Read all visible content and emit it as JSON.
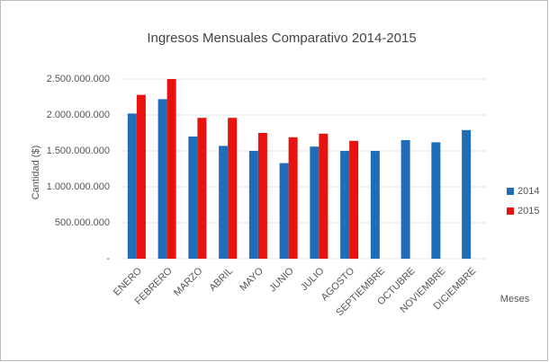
{
  "chart_data": {
    "type": "bar",
    "title": "Ingresos Mensuales Comparativo 2014-2015",
    "y_label": "Cantidad  ($)",
    "x_label": "Meses",
    "categories": [
      "ENERO",
      "FEBRERO",
      "MARZO",
      "ABRIL",
      "MAYO",
      "JUNIO",
      "JULIO",
      "AGOSTO",
      "SEPTIEMBRE",
      "OCTUBRE",
      "NOVIEMBRE",
      "DICIEMBRE"
    ],
    "series": [
      {
        "name": "2014",
        "color": "#1f6db8",
        "values": [
          2020000000,
          2220000000,
          1700000000,
          1570000000,
          1500000000,
          1330000000,
          1560000000,
          1500000000,
          1500000000,
          1650000000,
          1620000000,
          1790000000
        ]
      },
      {
        "name": "2015",
        "color": "#e8120e",
        "values": [
          2280000000,
          2500000000,
          1960000000,
          1960000000,
          1750000000,
          1690000000,
          1740000000,
          1640000000,
          null,
          null,
          null,
          null
        ]
      }
    ],
    "ylim": [
      0,
      2500000000
    ],
    "yticks": [
      {
        "value": 0,
        "label": "-"
      },
      {
        "value": 500000000,
        "label": "500.000.000"
      },
      {
        "value": 1000000000,
        "label": "1.000.000.000"
      },
      {
        "value": 1500000000,
        "label": "1.500.000.000"
      },
      {
        "value": 2000000000,
        "label": "2.000.000.000"
      },
      {
        "value": 2500000000,
        "label": "2.500.000.000"
      }
    ],
    "grid": true,
    "legend": "right"
  }
}
